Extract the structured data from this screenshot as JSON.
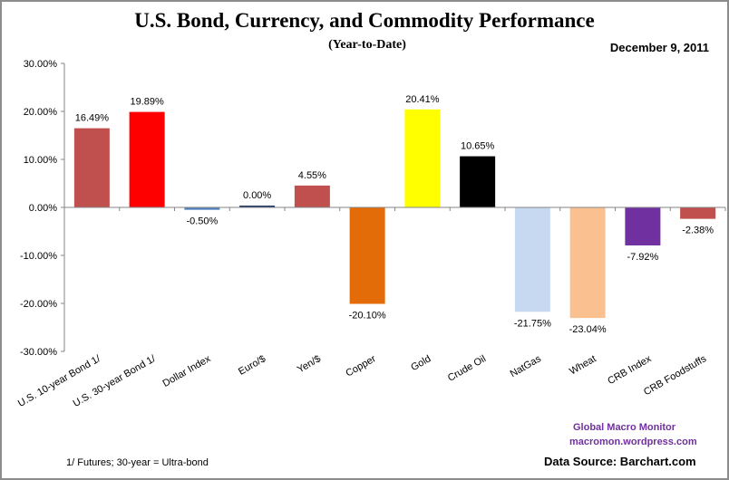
{
  "chart_data": {
    "type": "bar",
    "title": "U.S. Bond, Currency, and Commodity Performance",
    "subtitle": "(Year-to-Date)",
    "date": "December 9, 2011",
    "xlabel": "",
    "ylabel": "",
    "ylim": [
      -30,
      30
    ],
    "yticks": [
      30,
      20,
      10,
      0,
      -10,
      -20,
      -30
    ],
    "ytick_labels": [
      "30.00%",
      "20.00%",
      "10.00%",
      "0.00%",
      "-10.00%",
      "-20.00%",
      "-30.00%"
    ],
    "grid": false,
    "categories": [
      "U.S. 10-year Bond 1/",
      "U.S. 30-year Bond 1/",
      "Dollar Index",
      "Euro/$",
      "Yen/$",
      "Copper",
      "Gold",
      "Crude Oil",
      "NatGas",
      "Wheat",
      "CRB Index",
      "CRB Foodstuffs"
    ],
    "values": [
      16.49,
      19.89,
      -0.5,
      0.0,
      4.55,
      -20.1,
      20.41,
      10.65,
      -21.75,
      -23.04,
      -7.92,
      -2.38
    ],
    "data_labels": [
      "16.49%",
      "19.89%",
      "-0.50%",
      "0.00%",
      "4.55%",
      "-20.10%",
      "20.41%",
      "10.65%",
      "-21.75%",
      "-23.04%",
      "-7.92%",
      "-2.38%"
    ],
    "colors": [
      "#c0504d",
      "#ff0000",
      "#4f81bd",
      "#1f3864",
      "#c0504d",
      "#e36c09",
      "#ffff00",
      "#000000",
      "#c6d9f1",
      "#fac090",
      "#7030a0",
      "#c0504d"
    ]
  },
  "footnote": "1/  Futures; 30-year = Ultra-bond",
  "branding": {
    "line1": "Global  Macro  Monitor",
    "line2": "macromon.wordpress.com"
  },
  "source": "Data Source:  Barchart.com"
}
